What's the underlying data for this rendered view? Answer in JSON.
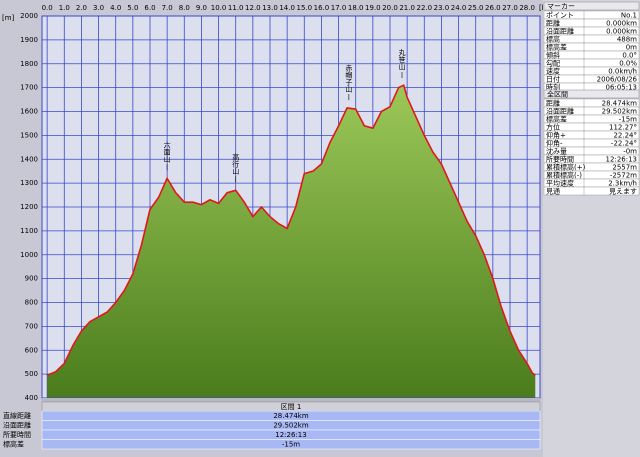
{
  "chart_data": {
    "type": "area",
    "y_axis_unit": "[m]",
    "x_axis_unit": "[km]",
    "x": [
      0,
      0.5,
      1.0,
      1.5,
      2.0,
      2.5,
      3.0,
      3.5,
      4.0,
      4.5,
      5.0,
      5.5,
      6.0,
      6.5,
      7.0,
      7.5,
      8.0,
      8.5,
      9.0,
      9.5,
      10.0,
      10.5,
      11.0,
      11.5,
      12.0,
      12.5,
      13.0,
      13.5,
      14.0,
      14.5,
      15.0,
      15.5,
      16.0,
      16.5,
      17.0,
      17.5,
      18.0,
      18.5,
      19.0,
      19.5,
      20.0,
      20.5,
      20.8,
      21.0,
      21.5,
      22.0,
      22.5,
      23.0,
      23.5,
      24.0,
      24.5,
      25.0,
      25.5,
      26.0,
      26.5,
      27.0,
      27.5,
      28.0,
      28.3,
      28.474
    ],
    "series": [
      {
        "color": "#e01818",
        "values": [
          495,
          510,
          545,
          620,
          680,
          720,
          740,
          760,
          800,
          850,
          920,
          1040,
          1190,
          1240,
          1320,
          1260,
          1220,
          1220,
          1210,
          1230,
          1215,
          1260,
          1270,
          1220,
          1160,
          1200,
          1160,
          1130,
          1110,
          1200,
          1340,
          1350,
          1380,
          1470,
          1540,
          1615,
          1610,
          1540,
          1530,
          1600,
          1620,
          1700,
          1710,
          1660,
          1580,
          1500,
          1430,
          1380,
          1300,
          1220,
          1140,
          1080,
          1000,
          900,
          780,
          680,
          600,
          545,
          505,
          495
        ]
      }
    ],
    "fill_color": "#6f9e2c",
    "xlim": [
      -0.3,
      28.75
    ],
    "ylim": [
      400,
      2000
    ],
    "xticks": [
      {
        "value": 0,
        "label": "0.0"
      },
      {
        "value": 1,
        "label": "1.0"
      },
      {
        "value": 2,
        "label": "2.0"
      },
      {
        "value": 3,
        "label": "3.0"
      },
      {
        "value": 4,
        "label": "4.0"
      },
      {
        "value": 5,
        "label": "5.0"
      },
      {
        "value": 6,
        "label": "6.0"
      },
      {
        "value": 7,
        "label": "7.0"
      },
      {
        "value": 8,
        "label": "8.0"
      },
      {
        "value": 9,
        "label": "9.0"
      },
      {
        "value": 10,
        "label": "10.0"
      },
      {
        "value": 11,
        "label": "11.0"
      },
      {
        "value": 12,
        "label": "12.0"
      },
      {
        "value": 13,
        "label": "13.0"
      },
      {
        "value": 14,
        "label": "14.0"
      },
      {
        "value": 15,
        "label": "15.0"
      },
      {
        "value": 16,
        "label": "16.0"
      },
      {
        "value": 17,
        "label": "17.0"
      },
      {
        "value": 18,
        "label": "18.0"
      },
      {
        "value": 19,
        "label": "19.0"
      },
      {
        "value": 20,
        "label": "20.0"
      },
      {
        "value": 21,
        "label": "21.0"
      },
      {
        "value": 22,
        "label": "22.0"
      },
      {
        "value": 23,
        "label": "23.0"
      },
      {
        "value": 24,
        "label": "24.0"
      },
      {
        "value": 25,
        "label": "25.0"
      },
      {
        "value": 26,
        "label": "26.0"
      },
      {
        "value": 27,
        "label": "27.0"
      },
      {
        "value": 28,
        "label": "28.0"
      }
    ],
    "yticks": [
      400,
      500,
      600,
      700,
      800,
      900,
      1000,
      1100,
      1200,
      1300,
      1400,
      1500,
      1600,
      1700,
      1800,
      1900,
      2000
    ],
    "grid": true,
    "annotations": [
      {
        "text": "六面山",
        "x": 7.0
      },
      {
        "text": "高行山",
        "x": 11.0
      },
      {
        "text": "赤帽子山",
        "x": 17.6
      },
      {
        "text": "丸笹山",
        "x": 20.7
      }
    ]
  },
  "marker_panel": {
    "title": "マーカー",
    "rows": [
      [
        "ポイント",
        "No.1"
      ],
      [
        "距離",
        "0.000km"
      ],
      [
        "沿面距離",
        "0.000km"
      ],
      [
        "標高",
        "488m"
      ],
      [
        "標高差",
        "0m"
      ],
      [
        "傾斜",
        "0.0°"
      ],
      [
        "勾配",
        "0.0%"
      ],
      [
        "速度",
        "0.0km/h"
      ],
      [
        "日付",
        "2006/08/26"
      ],
      [
        "時刻",
        "06:05:13"
      ]
    ]
  },
  "total_panel": {
    "title": "全区間",
    "rows": [
      [
        "距離",
        "28.474km"
      ],
      [
        "沿面距離",
        "29.502km"
      ],
      [
        "標高差",
        "-15m"
      ],
      [
        "方位",
        "112.27°"
      ],
      [
        "仰角+",
        "22.24°"
      ],
      [
        "仰角-",
        "-22.24°"
      ],
      [
        "沈み量",
        "-0m"
      ],
      [
        "所要時間",
        "12:26:13"
      ],
      [
        "累積標高(+)",
        "2557m"
      ],
      [
        "累積標高(-)",
        "-2572m"
      ],
      [
        "平均速度",
        "2.3km/h"
      ],
      [
        "見通",
        "見えます"
      ]
    ]
  },
  "section_panel": {
    "title": "区間 1",
    "rows": [
      [
        "直線距離",
        "28.474km"
      ],
      [
        "沿面距離",
        "29.502km"
      ],
      [
        "所要時間",
        "12:26:13"
      ],
      [
        "標高差",
        "-15m"
      ]
    ]
  }
}
